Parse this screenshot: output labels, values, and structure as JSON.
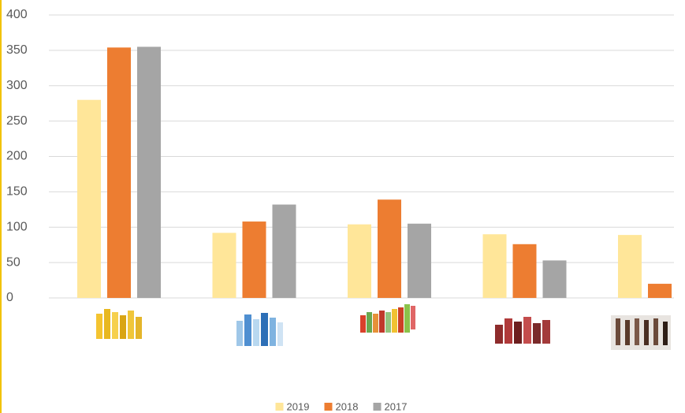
{
  "chart_data": {
    "type": "bar",
    "categories": [
      null,
      null,
      null,
      null,
      null
    ],
    "series": [
      {
        "name": "2019",
        "color": "#ffe699",
        "values": [
          280,
          92,
          104,
          90,
          89
        ]
      },
      {
        "name": "2018",
        "color": "#ed7d31",
        "values": [
          354,
          108,
          139,
          76,
          20
        ]
      },
      {
        "name": "2017",
        "color": "#a5a5a5",
        "values": [
          355,
          132,
          105,
          53,
          null
        ]
      }
    ],
    "ylim": [
      0,
      400
    ],
    "yticks": [
      0,
      50,
      100,
      150,
      200,
      250,
      300,
      350,
      400
    ],
    "grid": true,
    "legend": "bottom"
  }
}
